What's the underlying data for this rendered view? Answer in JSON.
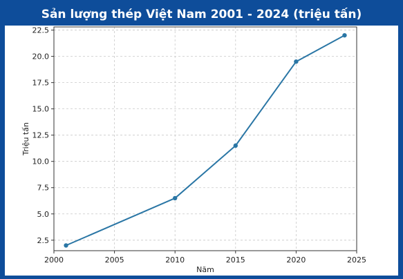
{
  "title": "Sản lượng thép Việt Nam 2001 - 2024 (triệu tấn)",
  "colors": {
    "background": "#0e4d9a",
    "panel": "#ffffff",
    "line": "#2a76a5",
    "grid": "#c8c8c8",
    "axis": "#333333"
  },
  "chart_data": {
    "type": "line",
    "title": "",
    "xlabel": "Năm",
    "ylabel": "Triệu tấn",
    "xlim": [
      2000,
      2025
    ],
    "ylim": [
      1.5,
      22.8
    ],
    "xticks": [
      2000,
      2005,
      2010,
      2015,
      2020,
      2025
    ],
    "yticks": [
      2.5,
      5.0,
      7.5,
      10.0,
      12.5,
      15.0,
      17.5,
      20.0,
      22.5
    ],
    "ytick_labels": [
      "2.5",
      "5.0",
      "7.5",
      "10.0",
      "12.5",
      "15.0",
      "17.5",
      "20.0",
      "22.5"
    ],
    "xtick_labels": [
      "2000",
      "2005",
      "2010",
      "2015",
      "2020",
      "2025"
    ],
    "grid": true,
    "series": [
      {
        "x": [
          2001,
          2010,
          2015,
          2020,
          2024
        ],
        "y": [
          2.0,
          6.5,
          11.5,
          19.5,
          22.0
        ],
        "marker": "circle"
      }
    ]
  }
}
